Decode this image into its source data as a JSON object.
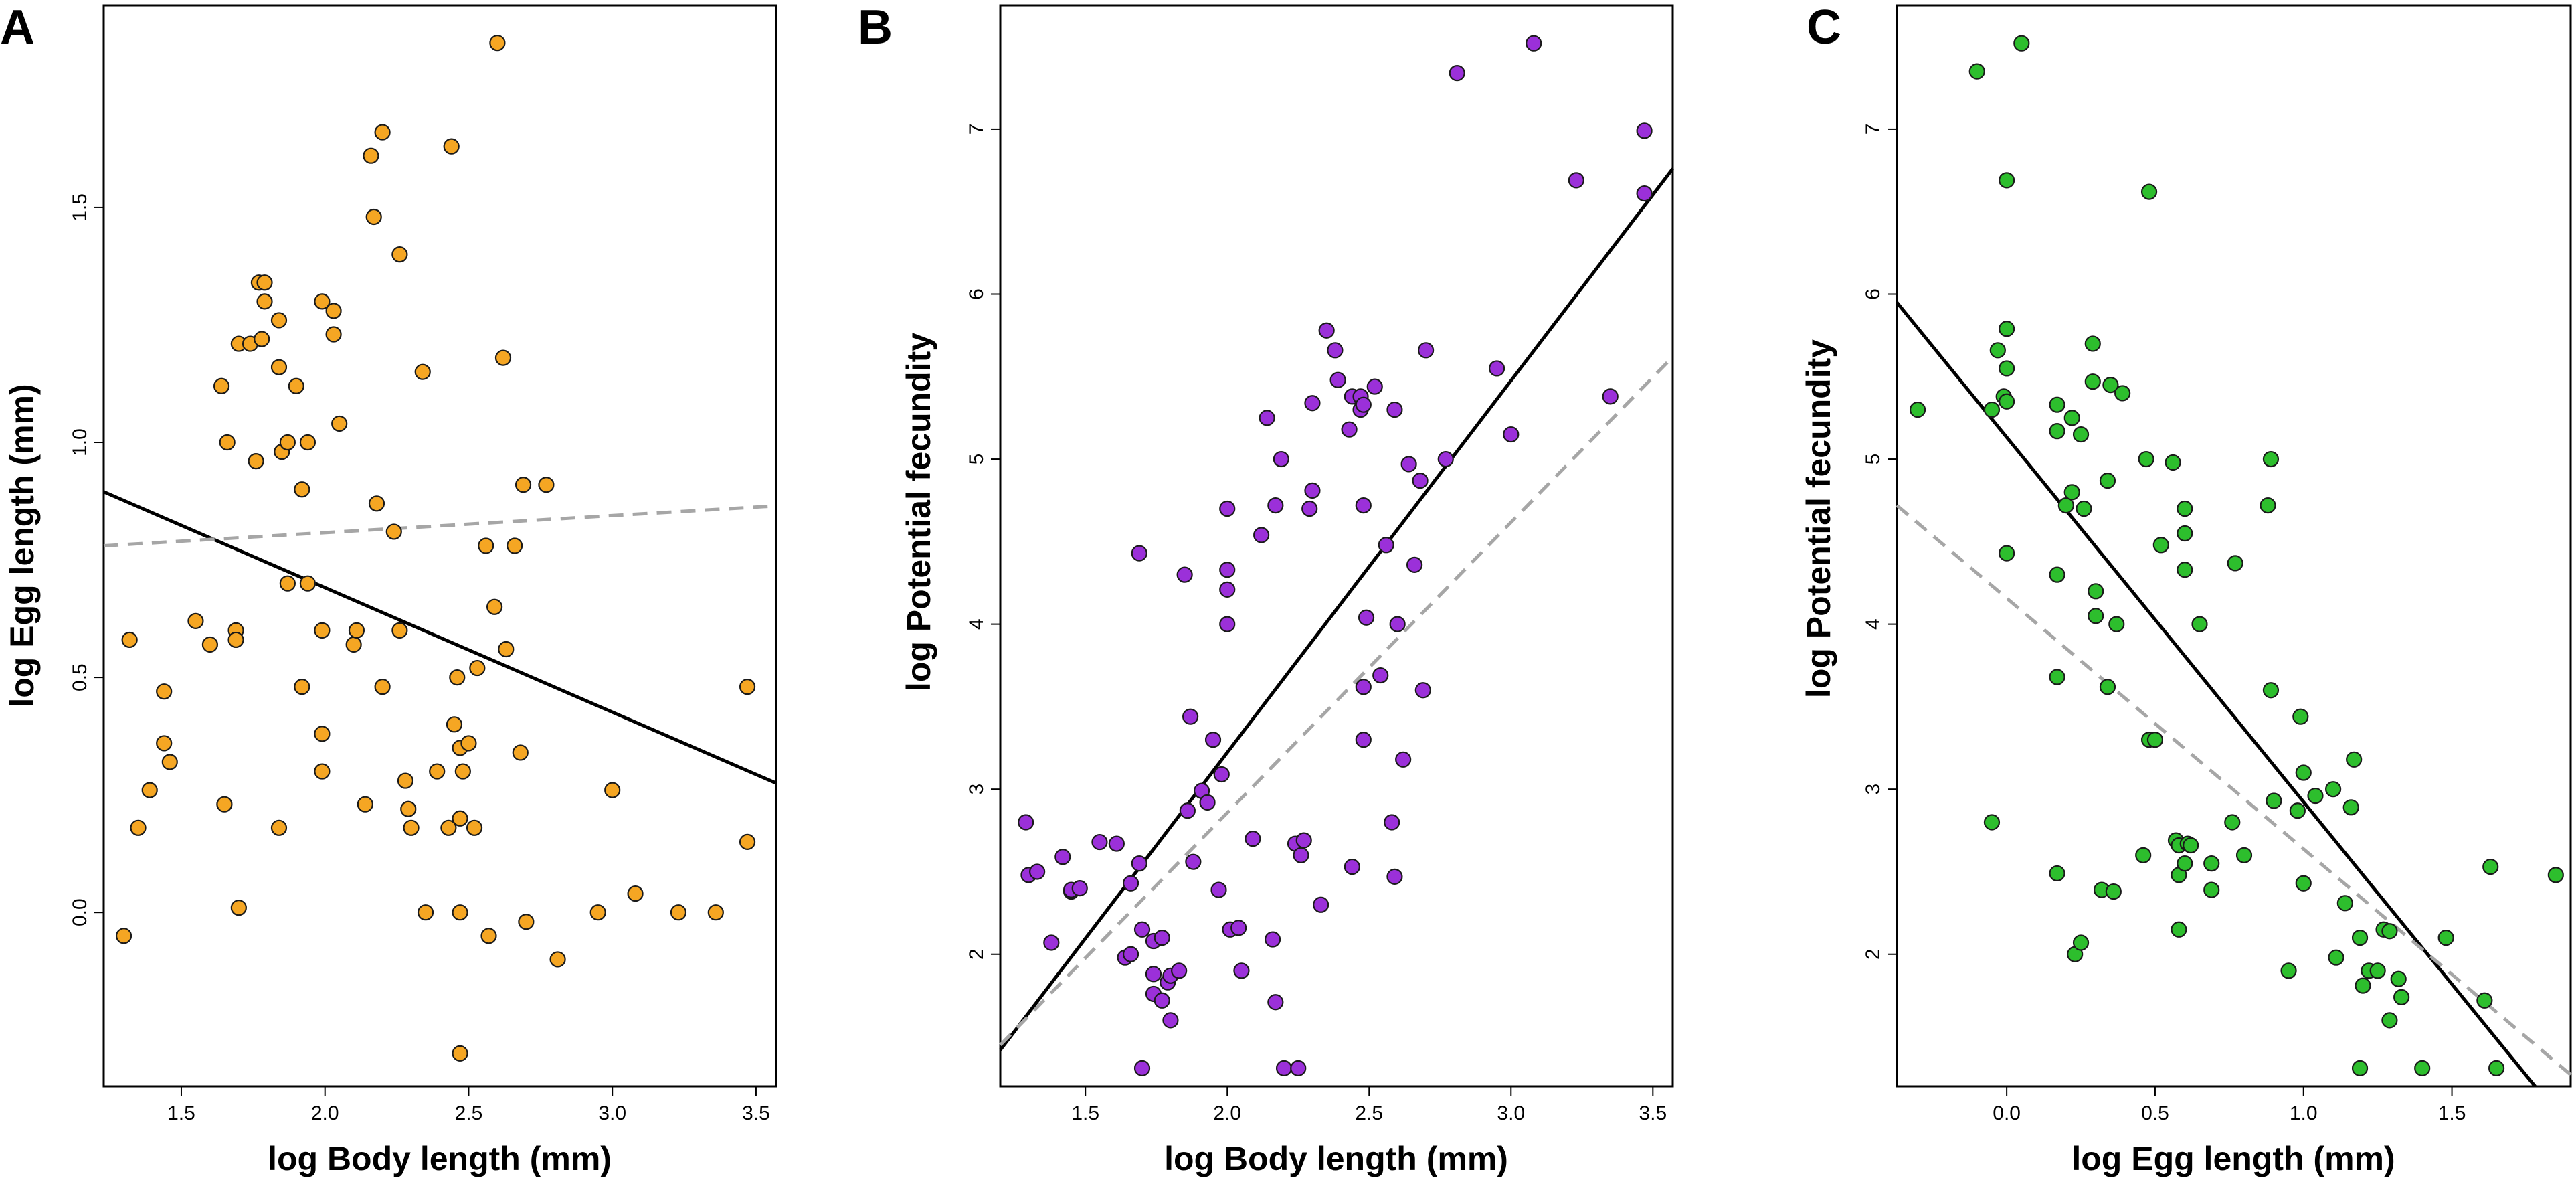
{
  "figure": {
    "panel_colors": {
      "A": "#F5A623",
      "B": "#9B30D9",
      "C": "#2DBE2D"
    },
    "solid_line_color": "#000000",
    "dashed_line_color": "#a6a6a6"
  },
  "chart_data": [
    {
      "panel": "A",
      "type": "scatter",
      "title": "",
      "xlabel": "log Body length (mm)",
      "ylabel": "log Egg length (mm)",
      "xlim": [
        1.23,
        3.57
      ],
      "ylim": [
        -0.37,
        1.93
      ],
      "xticks": [
        1.5,
        2.0,
        2.5,
        3.0,
        3.5
      ],
      "xtick_labels": [
        "1.5",
        "2.0",
        "2.5",
        "3.0",
        "3.5"
      ],
      "yticks": [
        0.0,
        0.5,
        1.0,
        1.5
      ],
      "ytick_labels": [
        "0.0",
        "0.5",
        "1.0",
        "1.5"
      ],
      "points": [
        [
          1.3,
          -0.05
        ],
        [
          1.32,
          0.58
        ],
        [
          1.35,
          0.18
        ],
        [
          1.39,
          0.26
        ],
        [
          1.44,
          0.47
        ],
        [
          1.44,
          0.36
        ],
        [
          1.46,
          0.32
        ],
        [
          1.55,
          0.62
        ],
        [
          1.6,
          0.57
        ],
        [
          1.64,
          1.12
        ],
        [
          1.66,
          1.0
        ],
        [
          1.65,
          0.23
        ],
        [
          1.69,
          0.6
        ],
        [
          1.69,
          0.58
        ],
        [
          1.7,
          1.21
        ],
        [
          1.7,
          0.01
        ],
        [
          1.74,
          1.21
        ],
        [
          1.76,
          0.96
        ],
        [
          1.77,
          1.34
        ],
        [
          1.78,
          1.22
        ],
        [
          1.79,
          1.34
        ],
        [
          1.79,
          1.3
        ],
        [
          1.84,
          1.26
        ],
        [
          1.84,
          1.16
        ],
        [
          1.85,
          0.98
        ],
        [
          1.84,
          0.18
        ],
        [
          1.87,
          1.0
        ],
        [
          1.87,
          0.7
        ],
        [
          1.9,
          1.12
        ],
        [
          1.92,
          0.48
        ],
        [
          1.92,
          0.9
        ],
        [
          1.94,
          1.0
        ],
        [
          1.94,
          0.7
        ],
        [
          1.99,
          1.3
        ],
        [
          1.99,
          0.6
        ],
        [
          1.99,
          0.38
        ],
        [
          1.99,
          0.3
        ],
        [
          2.03,
          1.23
        ],
        [
          2.03,
          1.28
        ],
        [
          2.05,
          1.04
        ],
        [
          2.1,
          0.57
        ],
        [
          2.11,
          0.6
        ],
        [
          2.14,
          0.23
        ],
        [
          2.16,
          1.61
        ],
        [
          2.17,
          1.48
        ],
        [
          2.18,
          0.87
        ],
        [
          2.2,
          1.66
        ],
        [
          2.2,
          0.48
        ],
        [
          2.24,
          0.81
        ],
        [
          2.26,
          1.4
        ],
        [
          2.26,
          0.6
        ],
        [
          2.28,
          0.28
        ],
        [
          2.29,
          0.22
        ],
        [
          2.3,
          0.18
        ],
        [
          2.34,
          1.15
        ],
        [
          2.35,
          0.0
        ],
        [
          2.39,
          0.3
        ],
        [
          2.43,
          0.18
        ],
        [
          2.44,
          1.63
        ],
        [
          2.45,
          0.4
        ],
        [
          2.46,
          0.5
        ],
        [
          2.47,
          0.35
        ],
        [
          2.47,
          0.2
        ],
        [
          2.47,
          0.0
        ],
        [
          2.47,
          -0.3
        ],
        [
          2.48,
          0.3
        ],
        [
          2.5,
          0.36
        ],
        [
          2.52,
          0.18
        ],
        [
          2.53,
          0.52
        ],
        [
          2.56,
          0.78
        ],
        [
          2.57,
          -0.05
        ],
        [
          2.59,
          0.65
        ],
        [
          2.6,
          1.85
        ],
        [
          2.62,
          1.18
        ],
        [
          2.63,
          0.56
        ],
        [
          2.66,
          0.78
        ],
        [
          2.68,
          0.34
        ],
        [
          2.69,
          0.91
        ],
        [
          2.7,
          -0.02
        ],
        [
          2.77,
          0.91
        ],
        [
          2.81,
          -0.1
        ],
        [
          2.95,
          0.0
        ],
        [
          3.0,
          0.26
        ],
        [
          3.08,
          0.04
        ],
        [
          3.23,
          0.0
        ],
        [
          3.36,
          0.0
        ],
        [
          3.47,
          0.48
        ],
        [
          3.47,
          0.15
        ]
      ],
      "lines": [
        {
          "style": "solid",
          "x": [
            1.23,
            3.57
          ],
          "y": [
            0.895,
            0.275
          ]
        },
        {
          "style": "dashed",
          "x": [
            1.23,
            3.57
          ],
          "y": [
            0.78,
            0.865
          ]
        }
      ]
    },
    {
      "panel": "B",
      "type": "scatter",
      "title": "",
      "xlabel": "log Body length (mm)",
      "ylabel": "log Potential fecundity",
      "xlim": [
        1.2,
        3.57
      ],
      "ylim": [
        1.2,
        7.75
      ],
      "xticks": [
        1.5,
        2.0,
        2.5,
        3.0,
        3.5
      ],
      "xtick_labels": [
        "1.5",
        "2.0",
        "2.5",
        "3.0",
        "3.5"
      ],
      "yticks": [
        2,
        3,
        4,
        5,
        6,
        7
      ],
      "ytick_labels": [
        "2",
        "3",
        "4",
        "5",
        "6",
        "7"
      ],
      "points": [
        [
          1.29,
          2.8
        ],
        [
          1.3,
          2.48
        ],
        [
          1.33,
          2.5
        ],
        [
          1.38,
          2.07
        ],
        [
          1.42,
          2.59
        ],
        [
          1.45,
          2.38
        ],
        [
          1.45,
          2.39
        ],
        [
          1.48,
          2.4
        ],
        [
          1.55,
          2.68
        ],
        [
          1.61,
          2.67
        ],
        [
          1.64,
          1.98
        ],
        [
          1.66,
          2.0
        ],
        [
          1.66,
          2.43
        ],
        [
          1.69,
          4.43
        ],
        [
          1.69,
          2.55
        ],
        [
          1.7,
          2.15
        ],
        [
          1.7,
          1.31
        ],
        [
          1.74,
          2.08
        ],
        [
          1.74,
          1.88
        ],
        [
          1.74,
          1.76
        ],
        [
          1.77,
          2.1
        ],
        [
          1.77,
          1.72
        ],
        [
          1.79,
          1.83
        ],
        [
          1.8,
          1.87
        ],
        [
          1.8,
          1.6
        ],
        [
          1.83,
          1.9
        ],
        [
          1.85,
          4.3
        ],
        [
          1.86,
          2.87
        ],
        [
          1.87,
          3.44
        ],
        [
          1.88,
          2.56
        ],
        [
          1.91,
          2.99
        ],
        [
          1.93,
          2.92
        ],
        [
          1.95,
          3.3
        ],
        [
          1.97,
          2.39
        ],
        [
          1.98,
          3.09
        ],
        [
          2.0,
          4.7
        ],
        [
          2.0,
          4.33
        ],
        [
          2.0,
          4.21
        ],
        [
          2.0,
          4.0
        ],
        [
          2.01,
          2.15
        ],
        [
          2.04,
          2.16
        ],
        [
          2.05,
          1.9
        ],
        [
          2.09,
          2.7
        ],
        [
          2.12,
          4.54
        ],
        [
          2.14,
          5.25
        ],
        [
          2.16,
          2.09
        ],
        [
          2.17,
          1.71
        ],
        [
          2.17,
          4.72
        ],
        [
          2.19,
          5.0
        ],
        [
          2.2,
          1.31
        ],
        [
          2.24,
          2.67
        ],
        [
          2.25,
          1.31
        ],
        [
          2.26,
          2.6
        ],
        [
          2.27,
          2.69
        ],
        [
          2.29,
          4.7
        ],
        [
          2.3,
          4.81
        ],
        [
          2.3,
          5.34
        ],
        [
          2.33,
          2.3
        ],
        [
          2.35,
          5.78
        ],
        [
          2.38,
          5.66
        ],
        [
          2.39,
          5.48
        ],
        [
          2.43,
          5.18
        ],
        [
          2.44,
          5.38
        ],
        [
          2.44,
          2.53
        ],
        [
          2.47,
          5.38
        ],
        [
          2.47,
          5.3
        ],
        [
          2.48,
          5.33
        ],
        [
          2.48,
          4.72
        ],
        [
          2.48,
          3.62
        ],
        [
          2.48,
          3.3
        ],
        [
          2.49,
          4.04
        ],
        [
          2.52,
          5.44
        ],
        [
          2.54,
          3.69
        ],
        [
          2.56,
          4.48
        ],
        [
          2.58,
          2.8
        ],
        [
          2.59,
          5.3
        ],
        [
          2.59,
          2.47
        ],
        [
          2.6,
          4.0
        ],
        [
          2.62,
          3.18
        ],
        [
          2.64,
          4.97
        ],
        [
          2.66,
          4.36
        ],
        [
          2.68,
          4.87
        ],
        [
          2.69,
          3.6
        ],
        [
          2.7,
          5.66
        ],
        [
          2.77,
          5.0
        ],
        [
          2.81,
          7.34
        ],
        [
          2.95,
          5.55
        ],
        [
          3.0,
          5.15
        ],
        [
          3.08,
          7.52
        ],
        [
          3.23,
          6.69
        ],
        [
          3.35,
          5.38
        ],
        [
          3.47,
          6.99
        ],
        [
          3.47,
          6.61
        ]
      ],
      "lines": [
        {
          "style": "solid",
          "x": [
            1.2,
            3.57
          ],
          "y": [
            1.42,
            6.76
          ]
        },
        {
          "style": "dashed",
          "x": [
            1.2,
            3.57
          ],
          "y": [
            1.45,
            5.62
          ]
        }
      ]
    },
    {
      "panel": "C",
      "type": "scatter",
      "title": "",
      "xlabel": "log Egg length (mm)",
      "ylabel": "log Potential fecundity",
      "xlim": [
        -0.37,
        1.9
      ],
      "ylim": [
        1.2,
        7.75
      ],
      "xticks": [
        0.0,
        0.5,
        1.0,
        1.5
      ],
      "xtick_labels": [
        "0.0",
        "0.5",
        "1.0",
        "1.5"
      ],
      "yticks": [
        2,
        3,
        4,
        5,
        6,
        7
      ],
      "ytick_labels": [
        "2",
        "3",
        "4",
        "5",
        "6",
        "7"
      ],
      "points": [
        [
          -0.3,
          5.3
        ],
        [
          -0.1,
          7.35
        ],
        [
          -0.05,
          2.8
        ],
        [
          -0.05,
          5.3
        ],
        [
          -0.03,
          5.66
        ],
        [
          -0.01,
          5.38
        ],
        [
          0.0,
          6.69
        ],
        [
          0.0,
          5.35
        ],
        [
          0.0,
          5.55
        ],
        [
          0.0,
          5.79
        ],
        [
          0.0,
          4.43
        ],
        [
          0.05,
          7.52
        ],
        [
          0.17,
          4.3
        ],
        [
          0.17,
          5.33
        ],
        [
          0.17,
          5.17
        ],
        [
          0.17,
          2.49
        ],
        [
          0.17,
          3.68
        ],
        [
          0.2,
          4.72
        ],
        [
          0.22,
          4.8
        ],
        [
          0.22,
          5.25
        ],
        [
          0.23,
          2.0
        ],
        [
          0.25,
          2.07
        ],
        [
          0.25,
          5.15
        ],
        [
          0.26,
          4.7
        ],
        [
          0.29,
          5.7
        ],
        [
          0.29,
          5.47
        ],
        [
          0.3,
          4.2
        ],
        [
          0.3,
          4.05
        ],
        [
          0.32,
          2.39
        ],
        [
          0.34,
          4.87
        ],
        [
          0.34,
          3.62
        ],
        [
          0.35,
          5.45
        ],
        [
          0.36,
          2.38
        ],
        [
          0.37,
          4.0
        ],
        [
          0.39,
          5.4
        ],
        [
          0.46,
          2.6
        ],
        [
          0.47,
          5.0
        ],
        [
          0.48,
          6.62
        ],
        [
          0.48,
          3.3
        ],
        [
          0.5,
          3.3
        ],
        [
          0.52,
          4.48
        ],
        [
          0.56,
          4.98
        ],
        [
          0.57,
          2.69
        ],
        [
          0.58,
          2.66
        ],
        [
          0.58,
          2.15
        ],
        [
          0.58,
          2.48
        ],
        [
          0.6,
          4.7
        ],
        [
          0.6,
          4.55
        ],
        [
          0.6,
          4.33
        ],
        [
          0.6,
          2.55
        ],
        [
          0.61,
          2.67
        ],
        [
          0.62,
          2.66
        ],
        [
          0.65,
          4.0
        ],
        [
          0.69,
          2.55
        ],
        [
          0.69,
          2.39
        ],
        [
          0.76,
          2.8
        ],
        [
          0.77,
          4.37
        ],
        [
          0.8,
          2.6
        ],
        [
          0.88,
          4.72
        ],
        [
          0.89,
          5.0
        ],
        [
          0.89,
          3.6
        ],
        [
          0.9,
          2.93
        ],
        [
          0.95,
          1.9
        ],
        [
          0.98,
          2.87
        ],
        [
          0.99,
          3.44
        ],
        [
          1.0,
          2.43
        ],
        [
          1.0,
          3.1
        ],
        [
          1.04,
          2.96
        ],
        [
          1.1,
          3.0
        ],
        [
          1.11,
          1.98
        ],
        [
          1.14,
          2.31
        ],
        [
          1.16,
          2.89
        ],
        [
          1.17,
          3.18
        ],
        [
          1.19,
          2.1
        ],
        [
          1.19,
          1.31
        ],
        [
          1.2,
          1.81
        ],
        [
          1.22,
          1.9
        ],
        [
          1.25,
          1.9
        ],
        [
          1.27,
          2.15
        ],
        [
          1.29,
          2.14
        ],
        [
          1.29,
          1.6
        ],
        [
          1.32,
          1.85
        ],
        [
          1.33,
          1.74
        ],
        [
          1.4,
          1.31
        ],
        [
          1.48,
          2.1
        ],
        [
          1.61,
          1.72
        ],
        [
          1.63,
          2.53
        ],
        [
          1.65,
          1.31
        ],
        [
          1.85,
          2.48
        ]
      ],
      "lines": [
        {
          "style": "solid",
          "x": [
            -0.37,
            1.78
          ],
          "y": [
            5.95,
            1.2
          ]
        },
        {
          "style": "dashed",
          "x": [
            -0.37,
            1.9
          ],
          "y": [
            4.72,
            1.27
          ]
        }
      ]
    }
  ]
}
